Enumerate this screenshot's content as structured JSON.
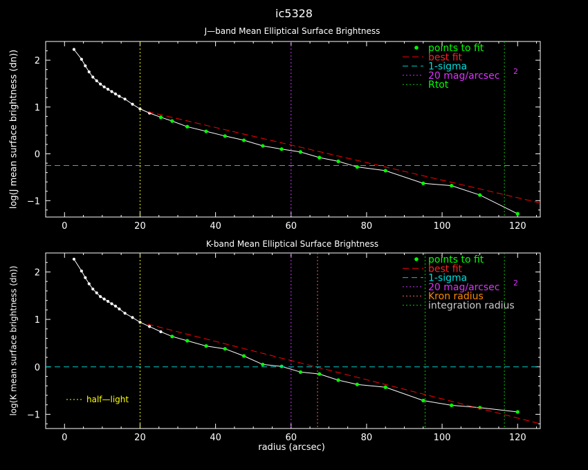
{
  "page_title": "ic5328",
  "chart_data": [
    {
      "type": "line",
      "title": "J—band Mean Elliptical Surface Brightness",
      "xlabel": "",
      "ylabel": "log(J mean surface brightness (dn))",
      "xlim": [
        -5,
        126
      ],
      "ylim": [
        -1.35,
        2.4
      ],
      "xticks": [
        0,
        20,
        40,
        60,
        80,
        100,
        120
      ],
      "yticks": [
        -1,
        0,
        1,
        2
      ],
      "xtick_labels": [
        "0",
        "20",
        "40",
        "60",
        "80",
        "100",
        "120"
      ],
      "ytick_labels": [
        "−1",
        "0",
        "1",
        "2"
      ],
      "series": [
        {
          "name": "points to fit",
          "style": "profile",
          "x": [
            2.5,
            4.5,
            5.5,
            6.5,
            7.5,
            8.5,
            9.5,
            10.5,
            11.5,
            12.5,
            13.5,
            14.5,
            16,
            18,
            20,
            22.5,
            25.5,
            28.5,
            32.5,
            37.5,
            42.5,
            47.5,
            52.5,
            57.5,
            62.5,
            67.5,
            72.5,
            77.5,
            85,
            95,
            102.5,
            110,
            120
          ],
          "y": [
            2.23,
            2.02,
            1.88,
            1.75,
            1.64,
            1.56,
            1.49,
            1.43,
            1.38,
            1.33,
            1.28,
            1.23,
            1.17,
            1.06,
            0.96,
            0.87,
            0.78,
            0.7,
            0.58,
            0.48,
            0.38,
            0.29,
            0.17,
            0.1,
            0.04,
            -0.08,
            -0.16,
            -0.28,
            -0.36,
            -0.63,
            -0.68,
            -0.88,
            -1.28
          ],
          "fit_points": [
            25.5,
            28.5,
            32.5,
            37.5,
            42.5,
            47.5,
            52.5,
            57.5,
            62.5,
            67.5,
            72.5,
            77.5,
            85,
            95,
            102.5,
            110,
            120
          ]
        },
        {
          "name": "best fit",
          "x": [
            22,
            126
          ],
          "y": [
            0.9,
            -1.05
          ]
        },
        {
          "name": "1-sigma",
          "y_const": -0.25
        },
        {
          "name": "20 mag/arcsec",
          "superscript": "2",
          "x_const": 60
        },
        {
          "name": "Rtot",
          "x_const": 116.5
        },
        {
          "name": "half-light",
          "x_const": 20
        }
      ],
      "legend": {
        "position": "top-right",
        "entries": [
          "points to fit",
          "best fit",
          "1-sigma",
          "20 mag/arcsec",
          "Rtot"
        ]
      }
    },
    {
      "type": "line",
      "title": "K-band Mean Elliptical Surface Brightness",
      "xlabel": "radius (arcsec)",
      "ylabel": "log(K mean surface brightness (dn))",
      "xlim": [
        -5,
        126
      ],
      "ylim": [
        -1.3,
        2.4
      ],
      "xticks": [
        0,
        20,
        40,
        60,
        80,
        100,
        120
      ],
      "yticks": [
        -1,
        0,
        1,
        2
      ],
      "xtick_labels": [
        "0",
        "20",
        "40",
        "60",
        "80",
        "100",
        "120"
      ],
      "ytick_labels": [
        "−1",
        "0",
        "1",
        "2"
      ],
      "series": [
        {
          "name": "points to fit",
          "style": "profile",
          "x": [
            2.5,
            4.5,
            5.5,
            6.5,
            7.5,
            8.5,
            9.5,
            10.5,
            11.5,
            12.5,
            13.5,
            14.5,
            16,
            18,
            20,
            22.5,
            25.5,
            28.5,
            32.5,
            37.5,
            42.5,
            47.5,
            52.5,
            57.5,
            62.5,
            67.5,
            72.5,
            77.5,
            85,
            95,
            102.5,
            110,
            120
          ],
          "y": [
            2.27,
            2.02,
            1.88,
            1.75,
            1.64,
            1.56,
            1.48,
            1.43,
            1.38,
            1.33,
            1.28,
            1.22,
            1.13,
            1.04,
            0.94,
            0.85,
            0.74,
            0.64,
            0.55,
            0.44,
            0.38,
            0.23,
            0.05,
            0.01,
            -0.11,
            -0.15,
            -0.28,
            -0.37,
            -0.43,
            -0.71,
            -0.81,
            -0.86,
            -0.95
          ],
          "fit_points": [
            28.5,
            32.5,
            37.5,
            42.5,
            47.5,
            52.5,
            57.5,
            62.5,
            67.5,
            72.5,
            77.5,
            85,
            95,
            102.5,
            110,
            120
          ]
        },
        {
          "name": "best fit",
          "x": [
            22,
            126
          ],
          "y": [
            0.9,
            -1.2
          ]
        },
        {
          "name": "1-sigma",
          "y_const": 0.0
        },
        {
          "name": "20 mag/arcsec",
          "superscript": "2",
          "x_const": 60
        },
        {
          "name": "Kron radius",
          "x_const": 67
        },
        {
          "name": "integration radius",
          "x_const": [
            95.5,
            116.5
          ]
        },
        {
          "name": "half-light",
          "x_const": 20
        }
      ],
      "legend": {
        "position": "top-right",
        "entries": [
          "points to fit",
          "best fit",
          "1-sigma",
          "20 mag/arcsec",
          "Kron radius",
          "integration radius"
        ]
      },
      "annotation": {
        "text": "half—light",
        "position": "lower-left"
      }
    }
  ],
  "colors": {
    "profile": "#ffffff",
    "fit_point": "#00ff00",
    "best_fit": "#ff0000",
    "sigma": "#00cccc",
    "mag20": "#cc33ff",
    "rtot": "#00cc00",
    "kron": "#ff6666",
    "integration": "#00cc00",
    "half_light": "#ffff00",
    "text_points": "#00ff00",
    "text_bestfit": "#ff2222",
    "text_sigma": "#00dddd",
    "text_mag": "#dd33ff",
    "text_rtot": "#00ff00",
    "text_kron": "#ff8800",
    "text_integration": "#cccccc",
    "text_halflight": "#ffff00"
  }
}
